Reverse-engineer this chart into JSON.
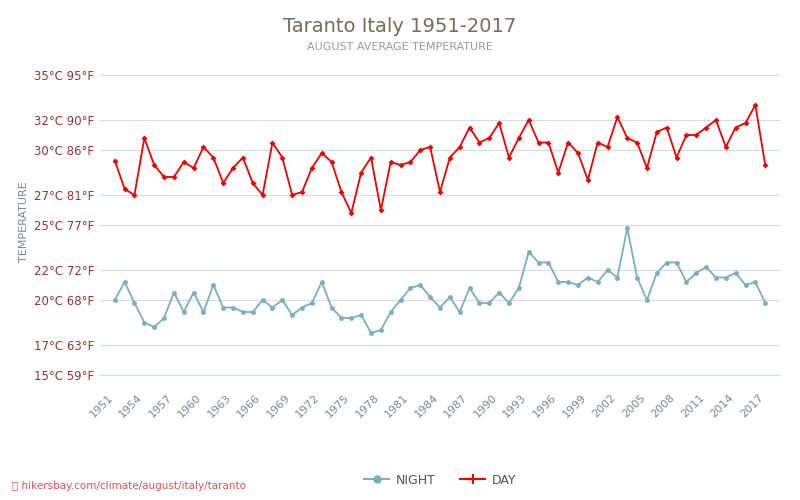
{
  "title": "Taranto Italy 1951-2017",
  "subtitle": "AUGUST AVERAGE TEMPERATURE",
  "ylabel": "TEMPERATURE",
  "xlabel_url": "hikersbay.com/climate/august/italy/taranto",
  "years": [
    1951,
    1952,
    1953,
    1954,
    1955,
    1956,
    1957,
    1958,
    1959,
    1960,
    1961,
    1962,
    1963,
    1964,
    1965,
    1966,
    1967,
    1968,
    1969,
    1970,
    1971,
    1972,
    1973,
    1974,
    1975,
    1976,
    1977,
    1978,
    1979,
    1980,
    1981,
    1982,
    1983,
    1984,
    1985,
    1986,
    1987,
    1988,
    1989,
    1990,
    1991,
    1992,
    1993,
    1994,
    1995,
    1996,
    1997,
    1998,
    1999,
    2000,
    2001,
    2002,
    2003,
    2004,
    2005,
    2006,
    2007,
    2008,
    2009,
    2010,
    2011,
    2012,
    2013,
    2014,
    2015,
    2016,
    2017
  ],
  "day_temps": [
    29.3,
    27.4,
    27.0,
    30.8,
    29.0,
    28.2,
    28.2,
    29.2,
    28.8,
    30.2,
    29.5,
    27.8,
    28.8,
    29.5,
    27.8,
    27.0,
    30.5,
    29.5,
    27.0,
    27.2,
    28.8,
    29.8,
    29.2,
    27.2,
    25.8,
    28.5,
    29.5,
    26.0,
    29.2,
    29.0,
    29.2,
    30.0,
    30.2,
    27.2,
    29.5,
    30.2,
    31.5,
    30.5,
    30.8,
    31.8,
    29.5,
    30.8,
    32.0,
    30.5,
    30.5,
    28.5,
    30.5,
    29.8,
    28.0,
    30.5,
    30.2,
    32.2,
    30.8,
    30.5,
    28.8,
    31.2,
    31.5,
    29.5,
    31.0,
    31.0,
    31.5,
    32.0,
    30.2,
    31.5,
    31.8,
    33.0,
    29.0
  ],
  "night_temps": [
    20.0,
    21.2,
    19.8,
    18.5,
    18.2,
    18.8,
    20.5,
    19.2,
    20.5,
    19.2,
    21.0,
    19.5,
    19.5,
    19.2,
    19.2,
    20.0,
    19.5,
    20.0,
    19.0,
    19.5,
    19.8,
    21.2,
    19.5,
    18.8,
    18.8,
    19.0,
    17.8,
    18.0,
    19.2,
    20.0,
    20.8,
    21.0,
    20.2,
    19.5,
    20.2,
    19.2,
    20.8,
    19.8,
    19.8,
    20.5,
    19.8,
    20.8,
    23.2,
    22.5,
    22.5,
    21.2,
    21.2,
    21.0,
    21.5,
    21.2,
    22.0,
    21.5,
    24.8,
    21.5,
    20.0,
    21.8,
    22.5,
    22.5,
    21.2,
    21.8,
    22.2,
    21.5,
    21.5,
    21.8,
    21.0,
    21.2,
    19.8
  ],
  "yticks_c": [
    15,
    17,
    20,
    22,
    25,
    27,
    30,
    32,
    35
  ],
  "yticks_f": [
    59,
    63,
    68,
    72,
    77,
    81,
    86,
    90,
    95
  ],
  "xtick_years": [
    1951,
    1954,
    1957,
    1960,
    1963,
    1966,
    1969,
    1972,
    1975,
    1978,
    1981,
    1984,
    1987,
    1990,
    1993,
    1996,
    1999,
    2002,
    2005,
    2008,
    2011,
    2014,
    2017
  ],
  "day_color": "#ee0000",
  "night_color": "#7aafc0",
  "grid_color": "#d0dde8",
  "bg_color": "#ffffff",
  "title_color": "#7a6a5a",
  "subtitle_color": "#999999",
  "tick_color_y": "#993333",
  "tick_color_x": "#778899",
  "ylabel_color": "#778899",
  "ylim": [
    14.0,
    36.5
  ],
  "xlim": [
    1949.5,
    2018.5
  ],
  "marker_size": 3.5,
  "line_width": 1.3
}
